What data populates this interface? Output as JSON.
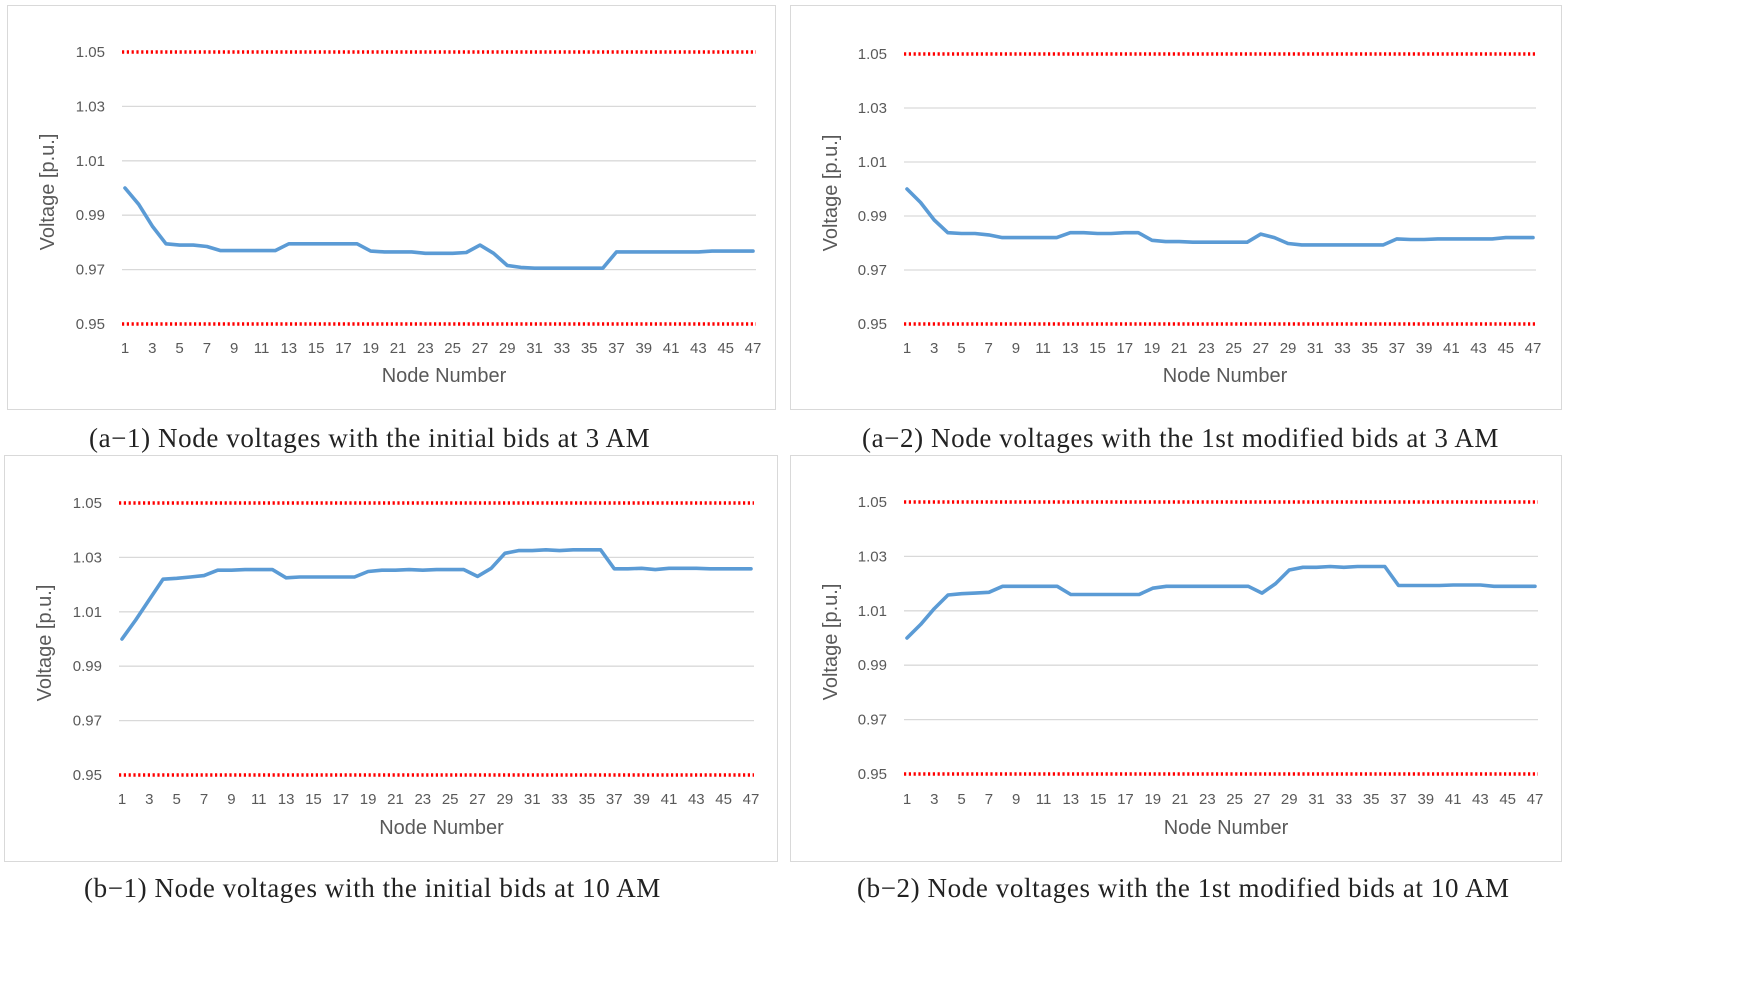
{
  "chart_data": [
    {
      "type": "line",
      "caption": "(a−1) Node voltages with the initial bids at 3 AM",
      "xlabel": "Node Number",
      "ylabel": "Voltage [p.u.]",
      "ylim": [
        0.95,
        1.05
      ],
      "yticks": [
        "1.05",
        "1.03",
        "1.01",
        "0.99",
        "0.97",
        "0.95"
      ],
      "xticks": [
        "1",
        "3",
        "5",
        "7",
        "9",
        "11",
        "13",
        "15",
        "17",
        "19",
        "21",
        "23",
        "25",
        "27",
        "29",
        "31",
        "33",
        "35",
        "37",
        "39",
        "41",
        "43",
        "45",
        "47"
      ],
      "grid": true,
      "limits": {
        "upper": 1.05,
        "lower": 0.95,
        "color": "#ff0000"
      },
      "line_color": "#5b9bd5",
      "x": [
        1,
        2,
        3,
        4,
        5,
        6,
        7,
        8,
        9,
        10,
        11,
        12,
        13,
        14,
        15,
        16,
        17,
        18,
        19,
        20,
        21,
        22,
        23,
        24,
        25,
        26,
        27,
        28,
        29,
        30,
        31,
        32,
        33,
        34,
        35,
        36,
        37,
        38,
        39,
        40,
        41,
        42,
        43,
        44,
        45,
        46,
        47
      ],
      "values": [
        1.0,
        0.994,
        0.986,
        0.9795,
        0.979,
        0.979,
        0.9785,
        0.977,
        0.977,
        0.977,
        0.977,
        0.977,
        0.9795,
        0.9795,
        0.9795,
        0.9795,
        0.9795,
        0.9795,
        0.9768,
        0.9765,
        0.9765,
        0.9765,
        0.976,
        0.976,
        0.976,
        0.9763,
        0.979,
        0.976,
        0.9715,
        0.9708,
        0.9705,
        0.9705,
        0.9705,
        0.9705,
        0.9705,
        0.9705,
        0.9765,
        0.9765,
        0.9765,
        0.9765,
        0.9765,
        0.9765,
        0.9765,
        0.9768,
        0.9768,
        0.9768,
        0.9768
      ]
    },
    {
      "type": "line",
      "caption": "(a−2) Node voltages with the 1st modified bids at 3 AM",
      "xlabel": "Node Number",
      "ylabel": "Voltage [p.u.]",
      "ylim": [
        0.95,
        1.05
      ],
      "yticks": [
        "1.05",
        "1.03",
        "1.01",
        "0.99",
        "0.97",
        "0.95"
      ],
      "xticks": [
        "1",
        "3",
        "5",
        "7",
        "9",
        "11",
        "13",
        "15",
        "17",
        "19",
        "21",
        "23",
        "25",
        "27",
        "29",
        "31",
        "33",
        "35",
        "37",
        "39",
        "41",
        "43",
        "45",
        "47"
      ],
      "grid": true,
      "limits": {
        "upper": 1.05,
        "lower": 0.95,
        "color": "#ff0000"
      },
      "line_color": "#5b9bd5",
      "x": [
        1,
        2,
        3,
        4,
        5,
        6,
        7,
        8,
        9,
        10,
        11,
        12,
        13,
        14,
        15,
        16,
        17,
        18,
        19,
        20,
        21,
        22,
        23,
        24,
        25,
        26,
        27,
        28,
        29,
        30,
        31,
        32,
        33,
        34,
        35,
        36,
        37,
        38,
        39,
        40,
        41,
        42,
        43,
        44,
        45,
        46,
        47
      ],
      "values": [
        1.0,
        0.995,
        0.9885,
        0.9838,
        0.9835,
        0.9835,
        0.983,
        0.982,
        0.982,
        0.982,
        0.982,
        0.982,
        0.9838,
        0.9838,
        0.9835,
        0.9835,
        0.9838,
        0.9838,
        0.981,
        0.9805,
        0.9805,
        0.9803,
        0.9803,
        0.9803,
        0.9803,
        0.9803,
        0.9833,
        0.982,
        0.9798,
        0.9793,
        0.9793,
        0.9793,
        0.9793,
        0.9793,
        0.9793,
        0.9793,
        0.9815,
        0.9813,
        0.9813,
        0.9815,
        0.9815,
        0.9815,
        0.9815,
        0.9815,
        0.982,
        0.982,
        0.982
      ]
    },
    {
      "type": "line",
      "caption": "(b−1) Node voltages with the initial bids at 10 AM",
      "xlabel": "Node Number",
      "ylabel": "Voltage [p.u.]",
      "ylim": [
        0.95,
        1.05
      ],
      "yticks": [
        "1.05",
        "1.03",
        "1.01",
        "0.99",
        "0.97",
        "0.95"
      ],
      "xticks": [
        "1",
        "3",
        "5",
        "7",
        "9",
        "11",
        "13",
        "15",
        "17",
        "19",
        "21",
        "23",
        "25",
        "27",
        "29",
        "31",
        "33",
        "35",
        "37",
        "39",
        "41",
        "43",
        "45",
        "47"
      ],
      "grid": true,
      "limits": {
        "upper": 1.05,
        "lower": 0.95,
        "color": "#ff0000"
      },
      "line_color": "#5b9bd5",
      "x": [
        1,
        2,
        3,
        4,
        5,
        6,
        7,
        8,
        9,
        10,
        11,
        12,
        13,
        14,
        15,
        16,
        17,
        18,
        19,
        20,
        21,
        22,
        23,
        24,
        25,
        26,
        27,
        28,
        29,
        30,
        31,
        32,
        33,
        34,
        35,
        36,
        37,
        38,
        39,
        40,
        41,
        42,
        43,
        44,
        45,
        46,
        47
      ],
      "values": [
        1.0,
        1.007,
        1.0145,
        1.022,
        1.0223,
        1.0228,
        1.0233,
        1.0253,
        1.0253,
        1.0255,
        1.0255,
        1.0255,
        1.0225,
        1.0228,
        1.0228,
        1.0228,
        1.0228,
        1.0228,
        1.0248,
        1.0253,
        1.0253,
        1.0255,
        1.0253,
        1.0255,
        1.0255,
        1.0255,
        1.023,
        1.026,
        1.0315,
        1.0325,
        1.0325,
        1.0328,
        1.0325,
        1.0328,
        1.0328,
        1.0328,
        1.0258,
        1.0258,
        1.026,
        1.0255,
        1.026,
        1.026,
        1.026,
        1.0258,
        1.0258,
        1.0258,
        1.0258
      ]
    },
    {
      "type": "line",
      "caption": "(b−2) Node voltages with the 1st modified bids at 10 AM",
      "xlabel": "Node Number",
      "ylabel": "Voltage [p.u.]",
      "ylim": [
        0.95,
        1.05
      ],
      "yticks": [
        "1.05",
        "1.03",
        "1.01",
        "0.99",
        "0.97",
        "0.95"
      ],
      "xticks": [
        "1",
        "3",
        "5",
        "7",
        "9",
        "11",
        "13",
        "15",
        "17",
        "19",
        "21",
        "23",
        "25",
        "27",
        "29",
        "31",
        "33",
        "35",
        "37",
        "39",
        "41",
        "43",
        "45",
        "47"
      ],
      "grid": true,
      "limits": {
        "upper": 1.05,
        "lower": 0.95,
        "color": "#ff0000"
      },
      "line_color": "#5b9bd5",
      "x": [
        1,
        2,
        3,
        4,
        5,
        6,
        7,
        8,
        9,
        10,
        11,
        12,
        13,
        14,
        15,
        16,
        17,
        18,
        19,
        20,
        21,
        22,
        23,
        24,
        25,
        26,
        27,
        28,
        29,
        30,
        31,
        32,
        33,
        34,
        35,
        36,
        37,
        38,
        39,
        40,
        41,
        42,
        43,
        44,
        45,
        46,
        47
      ],
      "values": [
        1.0,
        1.005,
        1.0108,
        1.0158,
        1.0163,
        1.0165,
        1.0168,
        1.019,
        1.019,
        1.019,
        1.019,
        1.019,
        1.016,
        1.016,
        1.016,
        1.016,
        1.016,
        1.016,
        1.0183,
        1.019,
        1.019,
        1.019,
        1.019,
        1.019,
        1.019,
        1.019,
        1.0165,
        1.02,
        1.025,
        1.026,
        1.026,
        1.0263,
        1.026,
        1.0263,
        1.0263,
        1.0263,
        1.0193,
        1.0193,
        1.0193,
        1.0193,
        1.0195,
        1.0195,
        1.0195,
        1.019,
        1.019,
        1.019,
        1.019
      ]
    }
  ]
}
